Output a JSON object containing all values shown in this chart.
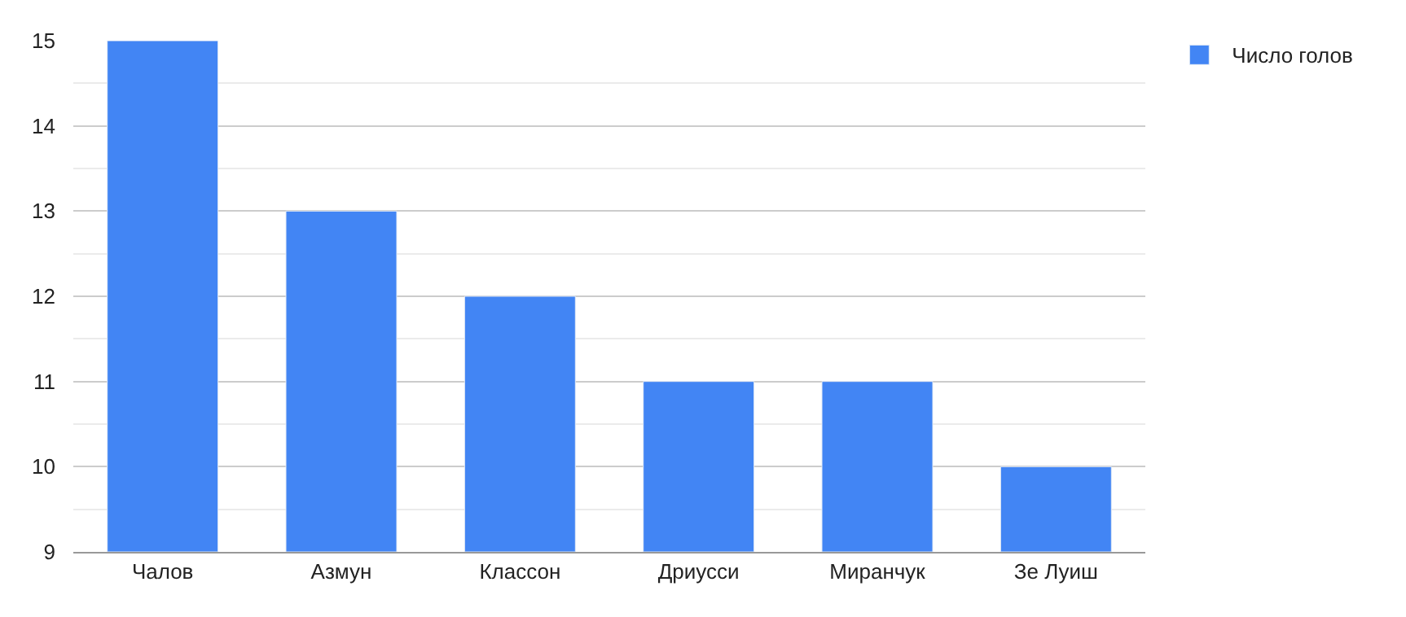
{
  "chart_data": {
    "type": "bar",
    "categories": [
      "Чалов",
      "Азмун",
      "Классон",
      "Дриусси",
      "Миранчук",
      "Зе Луиш"
    ],
    "series": [
      {
        "name": "Число голов",
        "color": "#4285f4",
        "values": [
          15,
          13,
          12,
          11,
          11,
          10
        ]
      }
    ],
    "ylim": [
      9,
      15
    ],
    "yticks": [
      9,
      10,
      11,
      12,
      13,
      14,
      15
    ],
    "grid": "y",
    "legend": "top right"
  }
}
